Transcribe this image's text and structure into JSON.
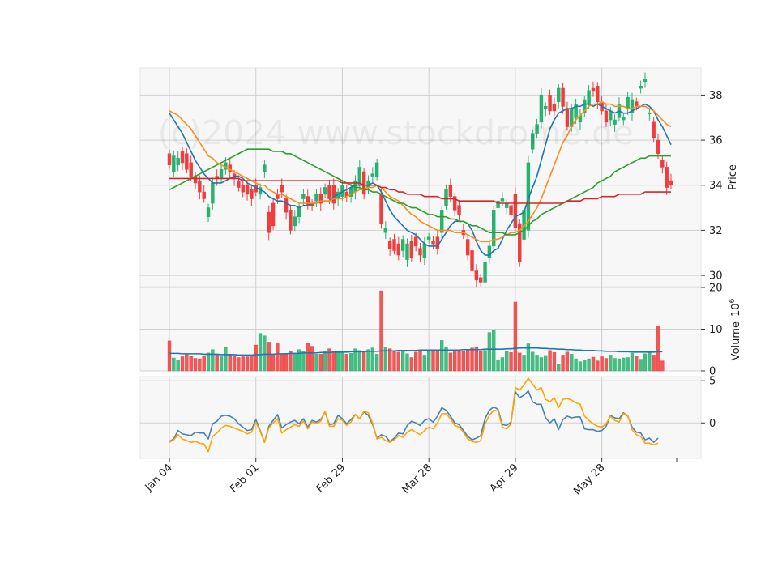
{
  "watermark": "(c)2024 www.stockdrome.de",
  "colors": {
    "up": "#26b36e",
    "down": "#f03c3c",
    "ma_short": "#1f77b4",
    "ma_mid": "#ff8c1a",
    "ma_long": "#2ca02c",
    "ma_longest": "#d62728",
    "volume_ma": "#1f77b4",
    "osc_1": "#4682b4",
    "osc_2": "#ffa500",
    "panel_bg": "#f7f7f7",
    "grid": "#d0d0d0"
  },
  "chart_data": {
    "type": "candlestick",
    "x_tick_labels": [
      "Jan 04",
      "Feb 01",
      "Feb 29",
      "Mar 28",
      "Apr 29",
      "May 28"
    ],
    "x_tick_index": [
      0,
      20,
      40,
      60,
      80,
      100
    ],
    "price_panel": {
      "ylabel": "Price",
      "ylim": [
        29.5,
        39.2
      ],
      "yticks": [
        30,
        32,
        34,
        36,
        38
      ],
      "open": [
        35.4,
        34.6,
        34.9,
        35.5,
        35.4,
        35.0,
        34.4,
        34.2,
        33.7,
        32.6,
        33.2,
        34.4,
        34.3,
        34.7,
        34.9,
        34.5,
        34.2,
        34.0,
        34.0,
        33.8,
        34.0,
        33.6,
        34.6,
        32.8,
        33.2,
        33.6,
        34.0,
        33.4,
        32.9,
        32.2,
        32.6,
        33.4,
        33.5,
        33.2,
        33.3,
        33.6,
        33.6,
        34.0,
        34.0,
        33.4,
        33.5,
        33.7,
        33.5,
        33.7,
        34.0,
        34.6,
        33.9,
        34.4,
        34.4,
        33.6,
        31.9,
        31.5,
        31.6,
        31.4,
        31.1,
        30.7,
        31.5,
        31.7,
        31.2,
        30.8,
        31.6,
        31.5,
        31.7,
        31.9,
        33.1,
        34.0,
        33.5,
        33.1,
        32.0,
        31.6,
        31.1,
        30.2,
        29.9,
        29.7,
        30.8,
        31.3,
        33.0,
        33.3,
        33.0,
        33.1,
        33.6,
        32.3,
        31.6,
        32.0,
        35.6,
        36.3,
        36.8,
        37.4,
        38.0,
        37.6,
        37.7,
        38.3,
        37.4,
        36.6,
        37.0,
        36.8,
        37.2,
        37.6,
        38.3,
        38.4,
        37.7,
        37.3,
        36.9,
        36.7,
        37.0,
        36.9,
        37.4,
        37.2,
        37.7,
        38.3,
        38.6,
        37.2,
        36.8,
        36.0,
        35.1,
        34.8,
        34.2
      ],
      "close": [
        34.9,
        35.3,
        35.2,
        35.0,
        34.7,
        34.4,
        34.1,
        33.7,
        33.4,
        33.0,
        34.1,
        34.3,
        34.7,
        35.0,
        34.6,
        34.3,
        33.9,
        33.7,
        33.6,
        33.4,
        33.7,
        33.9,
        34.9,
        31.9,
        32.2,
        33.4,
        33.7,
        32.8,
        32.0,
        32.6,
        33.0,
        33.6,
        33.1,
        33.1,
        33.6,
        33.2,
        33.9,
        33.4,
        33.2,
        33.7,
        34.0,
        33.5,
        33.9,
        34.2,
        34.8,
        33.6,
        34.2,
        34.5,
        35.0,
        32.3,
        32.1,
        31.2,
        31.1,
        30.9,
        31.6,
        31.4,
        30.8,
        31.3,
        30.9,
        31.4,
        31.7,
        31.4,
        31.2,
        32.9,
        33.8,
        33.5,
        32.9,
        32.7,
        31.8,
        30.9,
        30.2,
        29.8,
        29.7,
        30.6,
        31.3,
        32.9,
        33.3,
        33.4,
        33.2,
        32.7,
        32.1,
        30.6,
        32.9,
        35.0,
        36.3,
        36.7,
        38.0,
        37.5,
        37.3,
        37.3,
        38.3,
        37.5,
        36.6,
        37.4,
        37.6,
        37.1,
        37.8,
        38.2,
        38.2,
        37.7,
        37.3,
        36.8,
        37.3,
        36.9,
        37.6,
        37.0,
        37.9,
        37.8,
        37.5,
        38.4,
        38.7,
        37.2,
        36.1,
        35.4,
        34.8,
        33.9,
        34.0
      ]
    },
    "ma_lines": [
      {
        "values": [
          37.2,
          36.9,
          36.6,
          36.3,
          35.9,
          35.5,
          35.1,
          34.8,
          34.5,
          34.3,
          34.1,
          34.1,
          34.1,
          34.2,
          34.3,
          34.4,
          34.4,
          34.3,
          34.1,
          34.0,
          33.9,
          33.8,
          33.7,
          33.5,
          33.4,
          33.3,
          33.3,
          33.2,
          33.1,
          33.1,
          33.0,
          33.1,
          33.1,
          33.2,
          33.2,
          33.3,
          33.3,
          33.3,
          33.5,
          33.6,
          33.7,
          33.8,
          33.9,
          34.0,
          34.0,
          34.0,
          34.0,
          34.1,
          34.0,
          33.7,
          33.3,
          32.9,
          32.6,
          32.4,
          32.2,
          32.0,
          31.9,
          31.8,
          31.6,
          31.4,
          31.3,
          31.3,
          31.3,
          31.6,
          31.9,
          32.2,
          32.4,
          32.4,
          32.4,
          32.3,
          32.0,
          31.5,
          31.1,
          30.9,
          30.9,
          31.1,
          31.2,
          31.6,
          32.0,
          32.3,
          32.6,
          32.7,
          32.8,
          33.4,
          33.9,
          34.4,
          35.1,
          35.8,
          36.5,
          36.9,
          37.2,
          37.3,
          37.4,
          37.4,
          37.5,
          37.5,
          37.6,
          37.6,
          37.5,
          37.6,
          37.5,
          37.4,
          37.3,
          37.2,
          37.3,
          37.2,
          37.2,
          37.3,
          37.4,
          37.5,
          37.6,
          37.5,
          37.3,
          36.9,
          36.6,
          36.2,
          35.8
        ]
      },
      {
        "values": [
          37.3,
          37.2,
          37.1,
          36.9,
          36.7,
          36.5,
          36.2,
          35.9,
          35.6,
          35.3,
          35.2,
          35.0,
          34.9,
          34.8,
          34.7,
          34.6,
          34.5,
          34.4,
          34.3,
          34.2,
          34.1,
          34.0,
          34.0,
          33.8,
          33.7,
          33.6,
          33.6,
          33.5,
          33.4,
          33.3,
          33.2,
          33.2,
          33.2,
          33.2,
          33.2,
          33.3,
          33.3,
          33.3,
          33.4,
          33.4,
          33.4,
          33.5,
          33.6,
          33.7,
          33.8,
          33.8,
          33.9,
          33.9,
          34.0,
          33.9,
          33.7,
          33.5,
          33.4,
          33.3,
          33.1,
          32.9,
          32.7,
          32.6,
          32.4,
          32.3,
          32.2,
          32.1,
          32.0,
          32.0,
          32.0,
          32.0,
          31.9,
          31.9,
          31.9,
          31.8,
          31.7,
          31.6,
          31.5,
          31.5,
          31.5,
          31.6,
          31.6,
          31.7,
          31.8,
          31.9,
          31.9,
          32.0,
          32.2,
          32.4,
          32.7,
          33.0,
          33.4,
          33.9,
          34.4,
          34.9,
          35.4,
          35.9,
          36.2,
          36.6,
          36.9,
          37.1,
          37.3,
          37.5,
          37.6,
          37.6,
          37.7,
          37.6,
          37.6,
          37.5,
          37.5,
          37.5,
          37.4,
          37.4,
          37.5,
          37.5,
          37.5,
          37.4,
          37.3,
          37.1,
          36.9,
          36.7,
          36.6
        ]
      },
      {
        "values": [
          33.8,
          33.9,
          34.0,
          34.1,
          34.2,
          34.3,
          34.4,
          34.5,
          34.6,
          34.7,
          34.8,
          34.9,
          35.0,
          35.1,
          35.2,
          35.3,
          35.4,
          35.5,
          35.6,
          35.6,
          35.6,
          35.6,
          35.6,
          35.6,
          35.5,
          35.5,
          35.5,
          35.4,
          35.4,
          35.3,
          35.2,
          35.1,
          35.0,
          34.9,
          34.8,
          34.7,
          34.6,
          34.5,
          34.4,
          34.3,
          34.2,
          34.1,
          34.0,
          33.9,
          33.9,
          33.8,
          33.8,
          33.7,
          33.7,
          33.6,
          33.5,
          33.4,
          33.3,
          33.2,
          33.2,
          33.1,
          33.0,
          33.0,
          32.9,
          32.8,
          32.7,
          32.7,
          32.6,
          32.6,
          32.6,
          32.5,
          32.5,
          32.4,
          32.4,
          32.3,
          32.2,
          32.2,
          32.1,
          32.0,
          31.9,
          31.9,
          31.9,
          31.9,
          31.8,
          31.8,
          31.8,
          31.9,
          32.0,
          32.2,
          32.4,
          32.5,
          32.7,
          32.8,
          32.9,
          33.0,
          33.1,
          33.2,
          33.3,
          33.4,
          33.5,
          33.6,
          33.7,
          33.8,
          33.9,
          34.1,
          34.2,
          34.3,
          34.4,
          34.6,
          34.7,
          34.8,
          34.9,
          35.0,
          35.1,
          35.2,
          35.2,
          35.3,
          35.3,
          35.3,
          35.3,
          35.3,
          35.3
        ]
      },
      {
        "values": [
          34.3,
          34.3,
          34.3,
          34.3,
          34.3,
          34.3,
          34.3,
          34.3,
          34.3,
          34.3,
          34.3,
          34.3,
          34.3,
          34.3,
          34.3,
          34.3,
          34.3,
          34.2,
          34.2,
          34.2,
          34.2,
          34.2,
          34.2,
          34.2,
          34.2,
          34.2,
          34.2,
          34.2,
          34.2,
          34.2,
          34.2,
          34.2,
          34.2,
          34.2,
          34.2,
          34.2,
          34.2,
          34.2,
          34.2,
          34.2,
          34.1,
          34.1,
          34.1,
          34.1,
          34.1,
          34.0,
          34.0,
          34.0,
          34.0,
          33.9,
          33.9,
          33.8,
          33.8,
          33.7,
          33.7,
          33.6,
          33.6,
          33.6,
          33.6,
          33.5,
          33.5,
          33.5,
          33.5,
          33.4,
          33.4,
          33.4,
          33.4,
          33.3,
          33.3,
          33.3,
          33.3,
          33.3,
          33.3,
          33.3,
          33.3,
          33.3,
          33.2,
          33.2,
          33.2,
          33.2,
          33.2,
          33.2,
          33.2,
          33.2,
          33.2,
          33.2,
          33.2,
          33.2,
          33.2,
          33.2,
          33.2,
          33.2,
          33.3,
          33.3,
          33.3,
          33.3,
          33.4,
          33.4,
          33.4,
          33.4,
          33.5,
          33.5,
          33.5,
          33.5,
          33.6,
          33.6,
          33.6,
          33.6,
          33.6,
          33.6,
          33.7,
          33.7,
          33.7,
          33.7,
          33.7,
          33.7,
          33.7
        ]
      }
    ],
    "volume_panel": {
      "ylabel": "Volume",
      "unit_exponent": "6",
      "ylim": [
        0,
        20
      ],
      "yticks": [
        0,
        10,
        20
      ],
      "values": [
        7.2,
        3.1,
        2.6,
        3.4,
        4.1,
        3.6,
        3.0,
        2.9,
        3.6,
        4.3,
        5.1,
        3.8,
        3.4,
        5.6,
        4.0,
        3.6,
        3.2,
        3.4,
        3.4,
        3.5,
        6.2,
        9.0,
        8.4,
        6.9,
        4.0,
        6.7,
        4.0,
        4.2,
        4.7,
        4.0,
        5.1,
        4.7,
        6.6,
        5.9,
        4.0,
        4.0,
        4.6,
        5.3,
        4.8,
        4.8,
        4.5,
        4.0,
        4.2,
        5.3,
        4.9,
        4.7,
        5.1,
        5.5,
        4.0,
        19.2,
        5.7,
        5.3,
        4.9,
        4.5,
        4.7,
        4.1,
        3.2,
        4.5,
        4.9,
        3.8,
        4.7,
        5.1,
        4.8,
        7.3,
        5.8,
        4.3,
        4.8,
        4.6,
        4.6,
        5.1,
        5.5,
        5.8,
        4.6,
        4.9,
        9.2,
        9.7,
        2.6,
        3.2,
        4.7,
        4.4,
        16.5,
        4.3,
        3.8,
        6.5,
        4.5,
        3.8,
        3.2,
        3.7,
        4.9,
        4.4,
        1.6,
        3.8,
        4.5,
        4.0,
        2.9,
        2.2,
        2.6,
        2.9,
        3.3,
        2.4,
        3.4,
        3.0,
        3.8,
        3.0,
        2.9,
        3.1,
        3.2,
        4.2,
        3.6,
        2.8,
        4.1,
        4.4,
        3.8,
        10.8,
        2.4
      ]
    },
    "volume_ma": [
      4.2,
      4.2,
      4.2,
      4.1,
      4.1,
      4.1,
      4.1,
      4.1,
      4.0,
      4.0,
      4.0,
      4.0,
      3.9,
      3.9,
      3.9,
      3.9,
      3.8,
      3.8,
      3.8,
      3.8,
      3.9,
      3.9,
      4.0,
      4.0,
      4.0,
      4.1,
      4.1,
      4.1,
      4.2,
      4.2,
      4.2,
      4.3,
      4.3,
      4.3,
      4.3,
      4.4,
      4.4,
      4.4,
      4.5,
      4.5,
      4.5,
      4.5,
      4.6,
      4.6,
      4.6,
      4.6,
      4.7,
      4.7,
      4.7,
      4.8,
      4.8,
      4.8,
      4.8,
      4.9,
      4.9,
      4.9,
      4.9,
      4.9,
      5.0,
      5.0,
      5.0,
      5.0,
      5.0,
      5.0,
      5.0,
      5.0,
      5.0,
      5.0,
      5.1,
      5.1,
      5.1,
      5.1,
      5.1,
      5.2,
      5.2,
      5.2,
      5.2,
      5.2,
      5.3,
      5.3,
      5.4,
      5.5,
      5.5,
      5.5,
      5.5,
      5.5,
      5.4,
      5.4,
      5.3,
      5.3,
      5.2,
      5.2,
      5.1,
      5.1,
      5.0,
      5.0,
      4.9,
      4.9,
      4.9,
      4.8,
      4.8,
      4.7,
      4.7,
      4.7,
      4.6,
      4.6,
      4.6,
      4.5,
      4.5,
      4.5,
      4.5,
      4.5,
      4.5,
      4.6,
      4.6
    ],
    "oscillator_panel": {
      "ylim": [
        -4.2,
        5.5
      ],
      "yticks": [
        0,
        5
      ],
      "series": [
        {
          "values": [
            -2.2,
            -1.9,
            -0.9,
            -1.3,
            -1.4,
            -1.5,
            -1.1,
            -1.2,
            -1.2,
            -1.9,
            -0.1,
            0.2,
            0.8,
            0.9,
            0.8,
            0.5,
            -0.1,
            -0.5,
            -0.9,
            -0.8,
            0.4,
            -0.9,
            -2.3,
            -0.4,
            0.3,
            1.0,
            -0.6,
            -0.2,
            0.1,
            0.3,
            -0.1,
            0.5,
            -0.5,
            0.3,
            0.1,
            0.4,
            1.3,
            -0.2,
            -0.1,
            0.9,
            0.5,
            -0.1,
            0.4,
            1.0,
            0.5,
            1.3,
            0.9,
            -0.2,
            -1.8,
            -1.4,
            -1.6,
            -2.2,
            -1.8,
            -1.2,
            -1.3,
            -0.3,
            0.2,
            0.0,
            -0.3,
            0.3,
            0.5,
            0.1,
            0.8,
            1.8,
            1.5,
            0.8,
            0.0,
            -0.2,
            -0.9,
            -1.6,
            -2.0,
            -1.8,
            -1.5,
            0.5,
            1.5,
            1.9,
            1.6,
            -0.2,
            -0.3,
            0.1,
            3.7,
            3.0,
            3.3,
            3.8,
            2.5,
            2.2,
            2.2,
            0.6,
            0.0,
            0.5,
            -0.8,
            0.4,
            0.8,
            0.6,
            0.7,
            0.7,
            -0.7,
            -0.8,
            -0.8,
            -1.0,
            -0.9,
            -0.4,
            0.9,
            0.6,
            0.5,
            1.2,
            0.8,
            -0.5,
            -1.1,
            -1.2,
            -2.0,
            -1.8,
            -2.3,
            -1.8
          ]
        },
        {
          "values": [
            -2.3,
            -2.0,
            -1.4,
            -1.9,
            -2.1,
            -2.3,
            -2.2,
            -2.4,
            -2.5,
            -3.4,
            -1.6,
            -1.2,
            -0.6,
            -0.3,
            -0.4,
            -0.6,
            -0.8,
            -1.0,
            -1.3,
            -1.1,
            0.1,
            -1.0,
            -2.3,
            -0.6,
            0.0,
            0.5,
            -1.2,
            -0.8,
            -0.5,
            -0.2,
            -0.4,
            0.2,
            -0.7,
            0.1,
            -0.1,
            0.2,
            1.4,
            -0.4,
            -0.4,
            0.5,
            0.3,
            -0.3,
            0.1,
            1.0,
            0.5,
            1.4,
            1.2,
            0.0,
            -1.9,
            -1.7,
            -2.1,
            -2.3,
            -2.0,
            -1.5,
            -1.7,
            -1.1,
            -0.8,
            -1.1,
            -1.4,
            -0.9,
            -0.5,
            -0.7,
            0.0,
            1.1,
            1.1,
            0.5,
            -0.3,
            -0.5,
            -1.1,
            -1.9,
            -2.2,
            -2.3,
            -2.1,
            -0.1,
            0.9,
            1.5,
            1.4,
            -0.5,
            -0.7,
            -0.1,
            4.2,
            3.9,
            4.5,
            5.3,
            4.6,
            3.9,
            4.2,
            2.8,
            2.5,
            3.0,
            1.8,
            2.8,
            2.9,
            2.7,
            2.4,
            2.2,
            0.8,
            0.3,
            -0.1,
            -0.4,
            -0.5,
            -0.1,
            0.8,
            0.3,
            0.1,
            1.1,
            0.9,
            -0.8,
            -1.4,
            -1.6,
            -2.4,
            -2.4,
            -2.6,
            -2.4
          ]
        }
      ]
    }
  }
}
